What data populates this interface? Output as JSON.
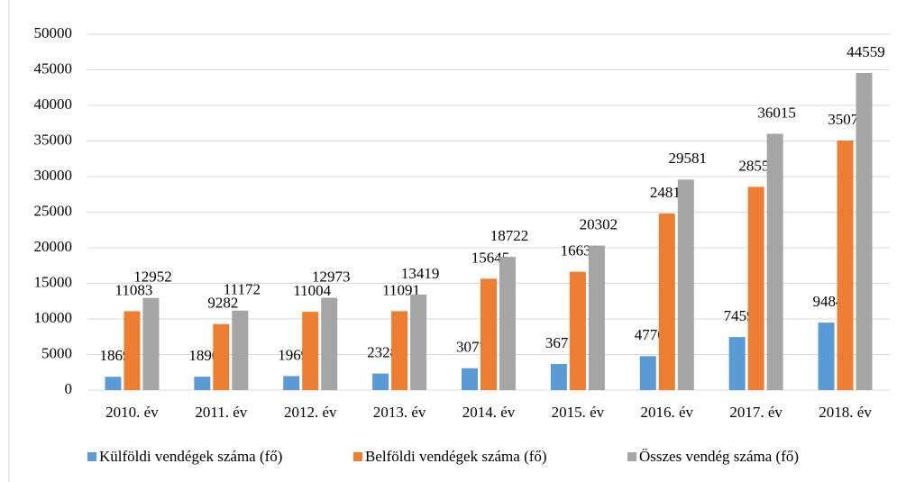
{
  "chart_data": {
    "type": "bar",
    "categories": [
      "2010. év",
      "2011. év",
      "2012. év",
      "2013. év",
      "2014. év",
      "2015. év",
      "2016. év",
      "2017. év",
      "2018. év"
    ],
    "series": [
      {
        "name": "Külföldi vendégek száma (fő)",
        "color": "#5b9bd5",
        "values": [
          1869,
          1890,
          1969,
          2328,
          3077,
          3671,
          4770,
          7459,
          9484
        ]
      },
      {
        "name": "Belföldi vendégek száma (fő)",
        "color": "#ed7d31",
        "values": [
          11083,
          9282,
          11004,
          11091,
          15645,
          16631,
          24811,
          28556,
          35075
        ]
      },
      {
        "name": "Összes vendég száma (fő)",
        "color": "#a5a5a5",
        "values": [
          12952,
          11172,
          12973,
          13419,
          18722,
          20302,
          29581,
          36015,
          44559
        ]
      }
    ],
    "ylim": [
      0,
      50000
    ],
    "yticks": [
      0,
      5000,
      10000,
      15000,
      20000,
      25000,
      30000,
      35000,
      40000,
      45000,
      50000
    ],
    "grid": true,
    "legend": "bottom"
  }
}
